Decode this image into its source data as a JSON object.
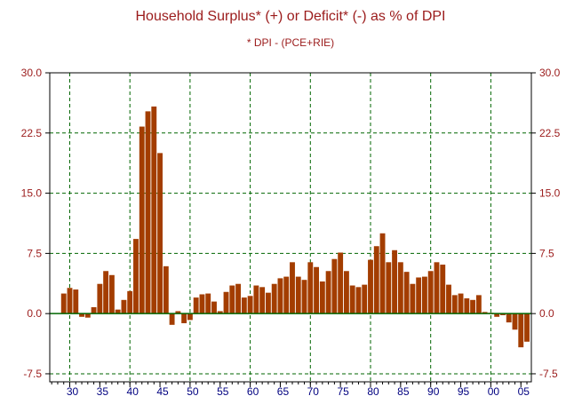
{
  "chart_data": {
    "type": "bar",
    "title": "Household Surplus* (+) or Deficit* (-) as % of DPI",
    "subtitle": "* DPI - (PCE+RIE)",
    "xlabel": "",
    "ylabel": "",
    "ylim": [
      -8.5,
      30
    ],
    "y_ticks": [
      "30.0",
      "22.5",
      "15.0",
      "7.5",
      "0.0",
      "-7.5"
    ],
    "y_tick_values": [
      30,
      22.5,
      15,
      7.5,
      0,
      -7.5
    ],
    "x_ticks": [
      "30",
      "35",
      "40",
      "45",
      "50",
      "55",
      "60",
      "65",
      "70",
      "75",
      "80",
      "85",
      "90",
      "95",
      "00",
      "05"
    ],
    "x_tick_years": [
      1930,
      1935,
      1940,
      1945,
      1950,
      1955,
      1960,
      1965,
      1970,
      1975,
      1980,
      1985,
      1990,
      1995,
      2000,
      2005
    ],
    "grid": true,
    "bar_color": "#a33d00",
    "zero_line_color": "#006600",
    "grid_color": "#006600",
    "text_color": "#9b1b1b",
    "x_tick_color": "#000080",
    "series": [
      {
        "x": [
          1929,
          1930,
          1931,
          1932,
          1933,
          1934,
          1935,
          1936,
          1937,
          1938,
          1939,
          1940,
          1941,
          1942,
          1943,
          1944,
          1945,
          1946,
          1947,
          1948,
          1949,
          1950,
          1951,
          1952,
          1953,
          1954,
          1955,
          1956,
          1957,
          1958,
          1959,
          1960,
          1961,
          1962,
          1963,
          1964,
          1965,
          1966,
          1967,
          1968,
          1969,
          1970,
          1971,
          1972,
          1973,
          1974,
          1975,
          1976,
          1977,
          1978,
          1979,
          1980,
          1981,
          1982,
          1983,
          1984,
          1985,
          1986,
          1987,
          1988,
          1989,
          1990,
          1991,
          1992,
          1993,
          1994,
          1995,
          1996,
          1997,
          1998,
          1999,
          2000,
          2001,
          2002,
          2003,
          2004,
          2005,
          2006
        ],
        "values": [
          2.5,
          3.2,
          3.0,
          -0.4,
          -0.5,
          0.8,
          3.7,
          5.3,
          4.8,
          0.5,
          1.7,
          2.8,
          9.3,
          23.3,
          25.2,
          25.8,
          20.0,
          5.9,
          -1.4,
          0.3,
          -1.2,
          -0.8,
          2.0,
          2.4,
          2.5,
          1.5,
          0.3,
          2.7,
          3.5,
          3.7,
          2.0,
          2.2,
          3.5,
          3.3,
          2.6,
          3.7,
          4.4,
          4.6,
          6.4,
          4.6,
          4.2,
          6.4,
          5.8,
          4.0,
          5.3,
          6.8,
          7.6,
          5.3,
          3.5,
          3.3,
          3.6,
          6.7,
          8.4,
          10.0,
          6.4,
          7.9,
          6.4,
          5.2,
          3.7,
          4.5,
          4.6,
          5.3,
          6.4,
          6.1,
          3.6,
          2.3,
          2.5,
          1.9,
          1.7,
          2.3,
          0.2,
          0.1,
          -0.4,
          -0.2,
          -1.1,
          -2.0,
          -4.2,
          -3.5
        ]
      }
    ]
  }
}
